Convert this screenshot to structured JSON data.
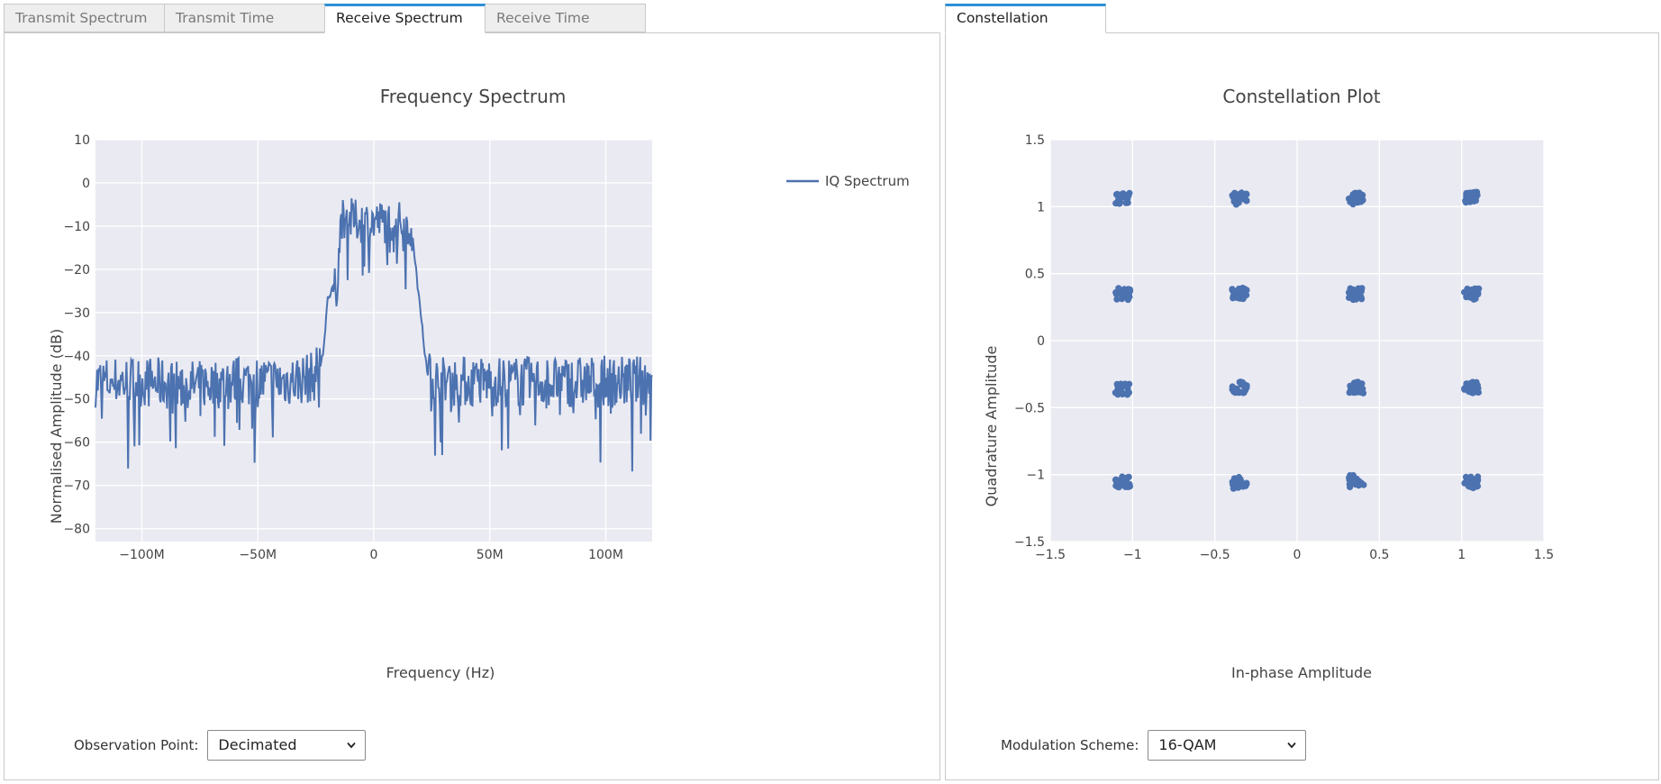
{
  "left_tabs": [
    {
      "label": "Transmit Spectrum",
      "active": false
    },
    {
      "label": "Transmit Time",
      "active": false
    },
    {
      "label": "Receive Spectrum",
      "active": true
    },
    {
      "label": "Receive Time",
      "active": false
    }
  ],
  "right_tabs": [
    {
      "label": "Constellation",
      "active": true
    }
  ],
  "controls": {
    "observation_label": "Observation Point:",
    "observation_value": "Decimated",
    "modulation_label": "Modulation Scheme:",
    "modulation_value": "16-QAM",
    "chevron_icon": "chevron-down-icon"
  },
  "colors": {
    "trace": "#4c72b0",
    "plot_bg": "#eaeaf2",
    "active_tab_accent": "#2e8fd6"
  },
  "chart_data": [
    {
      "type": "line",
      "title": "Frequency Spectrum",
      "xlabel": "Frequency (Hz)",
      "ylabel": "Normalised Amplitude (dB)",
      "xlim": [
        -120000000,
        120000000
      ],
      "ylim": [
        -83,
        10
      ],
      "xticks": [
        -100000000,
        -50000000,
        0,
        50000000,
        100000000
      ],
      "xtick_labels": [
        "−100M",
        "−50M",
        "0",
        "50M",
        "100M"
      ],
      "yticks": [
        10,
        0,
        -10,
        -20,
        -30,
        -40,
        -50,
        -60,
        -70,
        -80
      ],
      "ytick_labels": [
        "10",
        "0",
        "−10",
        "−20",
        "−30",
        "−40",
        "−50",
        "−60",
        "−70",
        "−80"
      ],
      "grid": true,
      "legend": "top-right",
      "series": [
        {
          "name": "IQ Spectrum",
          "x_range": [
            -120000000,
            120000000
          ],
          "y_profile": [
            [
              -120000000,
              -46
            ],
            [
              -100000000,
              -46
            ],
            [
              -80000000,
              -47
            ],
            [
              -60000000,
              -46
            ],
            [
              -40000000,
              -46
            ],
            [
              -26000000,
              -45
            ],
            [
              -22000000,
              -40
            ],
            [
              -20000000,
              -27
            ],
            [
              -16000000,
              -24
            ],
            [
              -14000000,
              -8
            ],
            [
              -6000000,
              -9
            ],
            [
              0,
              -9
            ],
            [
              10000000,
              -9
            ],
            [
              16000000,
              -10
            ],
            [
              18000000,
              -20
            ],
            [
              20000000,
              -28
            ],
            [
              22000000,
              -41
            ],
            [
              26000000,
              -46
            ],
            [
              60000000,
              -46
            ],
            [
              90000000,
              -46
            ],
            [
              120000000,
              -46
            ]
          ]
        }
      ]
    },
    {
      "type": "scatter",
      "title": "Constellation Plot",
      "xlabel": "In-phase Amplitude",
      "ylabel": "Quadrature Amplitude",
      "xlim": [
        -1.5,
        1.5
      ],
      "ylim": [
        -1.5,
        1.5
      ],
      "xticks": [
        -1.5,
        -1,
        -0.5,
        0,
        0.5,
        1,
        1.5
      ],
      "xtick_labels": [
        "−1.5",
        "−1",
        "−0.5",
        "0",
        "0.5",
        "1",
        "1.5"
      ],
      "yticks": [
        1.5,
        1,
        0.5,
        0,
        -0.5,
        -1,
        -1.5
      ],
      "ytick_labels": [
        "1.5",
        "1",
        "0.5",
        "0",
        "−0.5",
        "−1",
        "−1.5"
      ],
      "grid": true,
      "cluster_centers": [
        [
          -1.06,
          1.06
        ],
        [
          -0.35,
          1.06
        ],
        [
          0.36,
          1.06
        ],
        [
          1.06,
          1.07
        ],
        [
          -1.06,
          0.35
        ],
        [
          -0.35,
          0.35
        ],
        [
          0.36,
          0.35
        ],
        [
          1.06,
          0.35
        ],
        [
          -1.06,
          -0.36
        ],
        [
          -0.35,
          -0.35
        ],
        [
          0.36,
          -0.35
        ],
        [
          1.06,
          -0.35
        ],
        [
          -1.06,
          -1.06
        ],
        [
          -0.35,
          -1.06
        ],
        [
          0.36,
          -1.05
        ],
        [
          1.06,
          -1.06
        ]
      ]
    }
  ]
}
